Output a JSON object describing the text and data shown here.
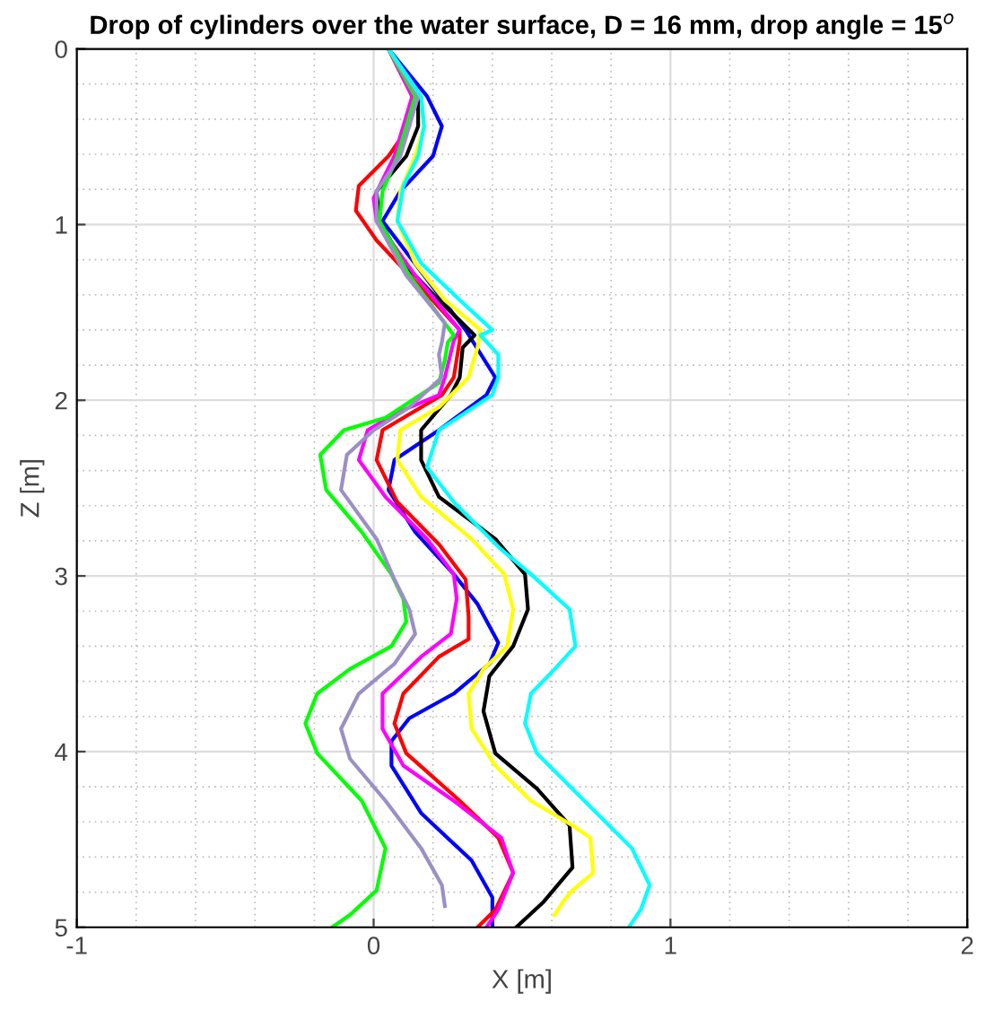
{
  "chart_data": {
    "type": "line",
    "title": "Drop of cylinders over the water surface, D = 16 mm, drop angle = 15$^{o}$",
    "xlabel": "X [m]",
    "ylabel": "Z [m]",
    "xlim": [
      -1,
      2
    ],
    "xticks": [
      -1,
      0,
      1,
      2
    ],
    "ylim": [
      5,
      0
    ],
    "yticks": [
      0,
      1,
      2,
      3,
      4,
      5
    ],
    "grid": true,
    "legend": false,
    "marker": "none",
    "line_style": "solid",
    "series": [
      {
        "color": "#0000ff",
        "x": [
          0.05,
          0.18,
          0.23,
          0.2,
          0.09,
          0.03,
          0.31,
          0.41,
          0.38,
          0.22,
          0.07,
          0.05,
          0.14,
          0.27,
          0.35,
          0.42,
          0.39,
          0.27,
          0.12,
          0.06,
          0.06,
          0.16,
          0.33,
          0.4,
          0.4
        ],
        "values": [
          0,
          0.27,
          0.44,
          0.61,
          0.81,
          0.98,
          1.6,
          1.87,
          1.97,
          2.17,
          2.34,
          2.51,
          2.75,
          2.99,
          3.16,
          3.38,
          3.5,
          3.67,
          3.81,
          3.94,
          4.08,
          4.35,
          4.62,
          4.83,
          5
        ]
      },
      {
        "color": "#000000",
        "x": [
          0.05,
          0.15,
          0.15,
          0.11,
          0.01,
          0.02,
          0.1,
          0.22,
          0.34,
          0.3,
          0.29,
          0.26,
          0.16,
          0.16,
          0.22,
          0.41,
          0.51,
          0.52,
          0.47,
          0.39,
          0.37,
          0.41,
          0.55,
          0.66,
          0.67,
          0.57,
          0.48
        ],
        "values": [
          0,
          0.27,
          0.44,
          0.61,
          0.81,
          0.98,
          1.22,
          1.43,
          1.63,
          1.7,
          1.87,
          1.97,
          2.17,
          2.34,
          2.55,
          2.79,
          2.99,
          3.19,
          3.4,
          3.57,
          3.77,
          4.01,
          4.21,
          4.42,
          4.66,
          4.86,
          5
        ]
      },
      {
        "color": "#ff0000",
        "x": [
          0.05,
          0.13,
          0.12,
          0.05,
          -0.05,
          -0.06,
          0.01,
          0.16,
          0.29,
          0.29,
          0.27,
          0.23,
          0.03,
          0.01,
          0.08,
          0.22,
          0.31,
          0.32,
          0.32,
          0.22,
          0.1,
          0.07,
          0.11,
          0.29,
          0.42,
          0.47,
          0.41,
          0.35
        ],
        "values": [
          0,
          0.27,
          0.44,
          0.61,
          0.78,
          0.92,
          1.09,
          1.36,
          1.6,
          1.66,
          1.87,
          1.97,
          2.17,
          2.34,
          2.58,
          2.82,
          3.02,
          3.23,
          3.36,
          3.46,
          3.67,
          3.84,
          4.01,
          4.28,
          4.49,
          4.69,
          4.9,
          5
        ]
      },
      {
        "color": "#ff00ff",
        "x": [
          0.05,
          0.13,
          0.07,
          0.0,
          0.01,
          0.14,
          0.29,
          0.27,
          0.24,
          0.22,
          0.08,
          -0.02,
          -0.05,
          0.04,
          0.18,
          0.27,
          0.28,
          0.26,
          0.16,
          0.03,
          0.03,
          0.1,
          0.27,
          0.43,
          0.47,
          0.42,
          0.38
        ],
        "values": [
          0,
          0.27,
          0.61,
          0.85,
          0.98,
          1.29,
          1.6,
          1.66,
          1.87,
          1.97,
          2.07,
          2.17,
          2.34,
          2.55,
          2.79,
          2.99,
          3.13,
          3.33,
          3.46,
          3.67,
          3.87,
          4.08,
          4.28,
          4.49,
          4.69,
          4.9,
          5
        ]
      },
      {
        "color": "#00ff00",
        "x": [
          0.05,
          0.14,
          0.08,
          0.03,
          0.02,
          0.12,
          0.27,
          0.25,
          0.24,
          0.22,
          0.04,
          -0.1,
          -0.18,
          -0.16,
          -0.04,
          0.06,
          0.1,
          0.11,
          0.06,
          -0.08,
          -0.19,
          -0.23,
          -0.19,
          -0.04,
          0.04,
          0.01,
          -0.08,
          -0.14
        ],
        "values": [
          0,
          0.27,
          0.61,
          0.81,
          0.98,
          1.29,
          1.63,
          1.67,
          1.77,
          1.9,
          2.1,
          2.17,
          2.31,
          2.51,
          2.75,
          2.99,
          3.13,
          3.26,
          3.4,
          3.53,
          3.67,
          3.84,
          4.01,
          4.28,
          4.55,
          4.79,
          4.93,
          5
        ]
      },
      {
        "color": "#9b8fc6",
        "x": [
          0.05,
          0.15,
          0.09,
          0.01,
          0.01,
          0.11,
          0.24,
          0.23,
          0.22,
          0.23,
          0.12,
          0.0,
          -0.09,
          -0.11,
          0.01,
          0.07,
          0.12,
          0.14,
          0.07,
          -0.05,
          -0.11,
          -0.08,
          0.04,
          0.16,
          0.23,
          0.24
        ],
        "values": [
          0,
          0.27,
          0.61,
          0.81,
          0.98,
          1.29,
          1.56,
          1.67,
          1.74,
          1.87,
          2.04,
          2.17,
          2.31,
          2.51,
          2.79,
          3.02,
          3.19,
          3.33,
          3.5,
          3.67,
          3.87,
          4.04,
          4.28,
          4.55,
          4.76,
          4.88
        ]
      },
      {
        "color": "#ffff00",
        "x": [
          0.05,
          0.16,
          0.17,
          0.14,
          0.09,
          0.08,
          0.14,
          0.24,
          0.36,
          0.35,
          0.32,
          0.22,
          0.09,
          0.08,
          0.16,
          0.33,
          0.44,
          0.47,
          0.45,
          0.37,
          0.32,
          0.33,
          0.41,
          0.53,
          0.67,
          0.73,
          0.74,
          0.67,
          0.64,
          0.61
        ],
        "values": [
          0,
          0.27,
          0.44,
          0.61,
          0.81,
          0.98,
          1.22,
          1.43,
          1.6,
          1.7,
          1.87,
          2.04,
          2.17,
          2.34,
          2.55,
          2.79,
          2.99,
          3.19,
          3.4,
          3.53,
          3.67,
          3.87,
          4.08,
          4.28,
          4.42,
          4.49,
          4.69,
          4.79,
          4.85,
          4.93
        ]
      },
      {
        "color": "#00ffff",
        "x": [
          0.05,
          0.16,
          0.17,
          0.15,
          0.1,
          0.08,
          0.16,
          0.29,
          0.4,
          0.36,
          0.42,
          0.42,
          0.4,
          0.22,
          0.18,
          0.27,
          0.43,
          0.53,
          0.66,
          0.68,
          0.61,
          0.53,
          0.51,
          0.55,
          0.71,
          0.87,
          0.93,
          0.9,
          0.86
        ],
        "values": [
          0,
          0.27,
          0.44,
          0.61,
          0.78,
          0.98,
          1.22,
          1.43,
          1.6,
          1.63,
          1.74,
          1.87,
          1.97,
          2.17,
          2.38,
          2.58,
          2.85,
          2.99,
          3.19,
          3.4,
          3.53,
          3.67,
          3.84,
          4.01,
          4.28,
          4.55,
          4.76,
          4.9,
          5
        ]
      }
    ]
  }
}
